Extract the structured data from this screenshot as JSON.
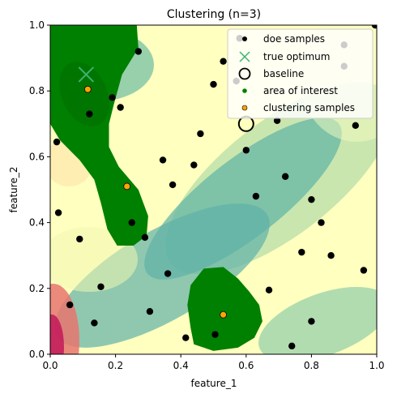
{
  "chart_data": {
    "type": "scatter",
    "title": "Clustering (n=3)",
    "xlabel": "feature_1",
    "ylabel": "feature_2",
    "xlim": [
      0,
      1
    ],
    "ylim": [
      0,
      1
    ],
    "xticks": [
      "0.0",
      "0.2",
      "0.4",
      "0.6",
      "0.8",
      "1.0"
    ],
    "yticks": [
      "0.0",
      "0.2",
      "0.4",
      "0.6",
      "0.8",
      "1.0"
    ],
    "legend": {
      "placement": "top-right",
      "entries": [
        "doe samples",
        "true optimum",
        "baseline",
        "area of interest",
        "clustering samples"
      ]
    },
    "colors": {
      "doe": "#000000",
      "optimum": "#3cb371",
      "baseline": "#000000",
      "area": "#008000",
      "clustering": "#ffa500",
      "contour_low": "#4fa6ad",
      "contour_mid": "#ffffbf",
      "contour_high": "#c2185b"
    },
    "series": [
      {
        "name": "doe samples",
        "points": [
          [
            0.27,
            0.92
          ],
          [
            0.5,
            0.82
          ],
          [
            0.12,
            0.73
          ],
          [
            0.19,
            0.78
          ],
          [
            0.215,
            0.75
          ],
          [
            0.02,
            0.645
          ],
          [
            0.46,
            0.67
          ],
          [
            0.345,
            0.59
          ],
          [
            0.44,
            0.575
          ],
          [
            0.375,
            0.515
          ],
          [
            0.6,
            0.62
          ],
          [
            0.695,
            0.71
          ],
          [
            0.72,
            0.54
          ],
          [
            0.63,
            0.48
          ],
          [
            0.8,
            0.47
          ],
          [
            0.935,
            0.695
          ],
          [
            0.025,
            0.43
          ],
          [
            0.25,
            0.4
          ],
          [
            0.29,
            0.355
          ],
          [
            0.09,
            0.35
          ],
          [
            0.83,
            0.4
          ],
          [
            0.77,
            0.31
          ],
          [
            0.86,
            0.3
          ],
          [
            0.96,
            0.255
          ],
          [
            0.36,
            0.245
          ],
          [
            0.155,
            0.205
          ],
          [
            0.67,
            0.195
          ],
          [
            0.06,
            0.15
          ],
          [
            0.305,
            0.13
          ],
          [
            0.135,
            0.095
          ],
          [
            0.8,
            0.1
          ],
          [
            0.505,
            0.06
          ],
          [
            0.415,
            0.05
          ],
          [
            0.74,
            0.025
          ],
          [
            0.995,
            1.0
          ],
          [
            0.53,
            0.89
          ],
          [
            0.57,
            0.83
          ],
          [
            0.58,
            0.96
          ],
          [
            0.9,
            0.94
          ],
          [
            0.9,
            0.875
          ]
        ]
      },
      {
        "name": "true optimum",
        "points": [
          [
            0.11,
            0.85
          ]
        ]
      },
      {
        "name": "baseline",
        "points": [
          [
            0.6,
            0.7
          ]
        ]
      },
      {
        "name": "clustering samples",
        "points": [
          [
            0.115,
            0.805
          ],
          [
            0.235,
            0.51
          ],
          [
            0.53,
            0.12
          ]
        ]
      }
    ],
    "regions": [
      {
        "name": "area of interest",
        "outlines": [
          [
            [
              0.0,
              1.0
            ],
            [
              0.265,
              1.0
            ],
            [
              0.27,
              0.93
            ],
            [
              0.22,
              0.85
            ],
            [
              0.195,
              0.76
            ],
            [
              0.18,
              0.7
            ],
            [
              0.18,
              0.63
            ],
            [
              0.21,
              0.57
            ],
            [
              0.27,
              0.5
            ],
            [
              0.3,
              0.42
            ],
            [
              0.295,
              0.36
            ],
            [
              0.255,
              0.33
            ],
            [
              0.205,
              0.33
            ],
            [
              0.175,
              0.38
            ],
            [
              0.155,
              0.46
            ],
            [
              0.135,
              0.53
            ],
            [
              0.09,
              0.59
            ],
            [
              0.03,
              0.65
            ],
            [
              0.0,
              0.7
            ]
          ],
          [
            [
              0.43,
              0.21
            ],
            [
              0.47,
              0.26
            ],
            [
              0.53,
              0.265
            ],
            [
              0.575,
              0.23
            ],
            [
              0.61,
              0.19
            ],
            [
              0.64,
              0.15
            ],
            [
              0.65,
              0.1
            ],
            [
              0.625,
              0.05
            ],
            [
              0.575,
              0.02
            ],
            [
              0.5,
              0.01
            ],
            [
              0.44,
              0.03
            ],
            [
              0.43,
              0.08
            ],
            [
              0.42,
              0.15
            ]
          ]
        ]
      }
    ]
  }
}
